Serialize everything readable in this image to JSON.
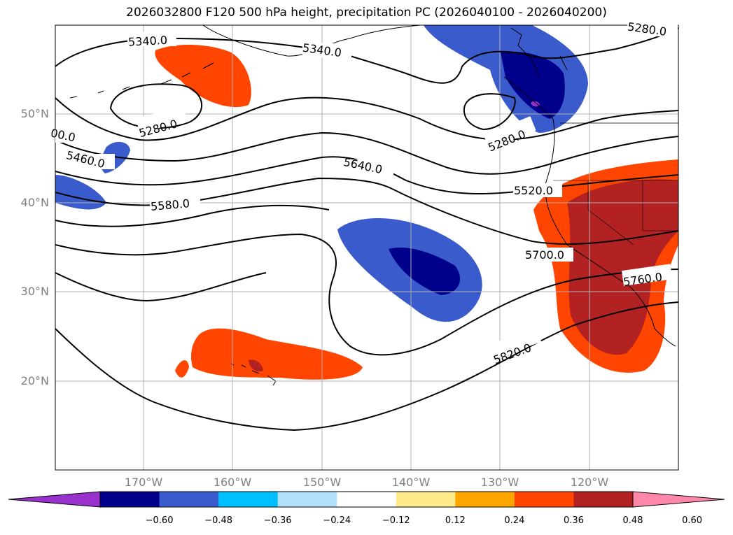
{
  "title": "2026032800 F120 500 hPa height, precipitation PC (2026040100 - 2026040200)",
  "map": {
    "lat_ticks": [
      "50°N",
      "40°N",
      "30°N",
      "20°N"
    ],
    "lon_ticks": [
      "170°W",
      "160°W",
      "150°W",
      "140°W",
      "130°W",
      "120°W"
    ],
    "contour_labels": [
      "5340.0",
      "5340.0",
      "5280.0",
      "5280.0",
      "5280.0",
      "00.0",
      "5460.0",
      "5580.0",
      "5640.0",
      "5520.0",
      "5700.0",
      "5760.0",
      "5820.0"
    ]
  },
  "colorbar": {
    "colors": [
      "#9932cc",
      "#00008b",
      "#3a5bcc",
      "#00bfff",
      "#b0e0fa",
      "#ffffff",
      "#ffeb8c",
      "#ffa500",
      "#ff4500",
      "#b22222",
      "#ff88aa"
    ],
    "labels": [
      "−0.60",
      "−0.48",
      "−0.36",
      "−0.24",
      "−0.12",
      "0.12",
      "0.24",
      "0.36",
      "0.48",
      "0.60"
    ]
  }
}
